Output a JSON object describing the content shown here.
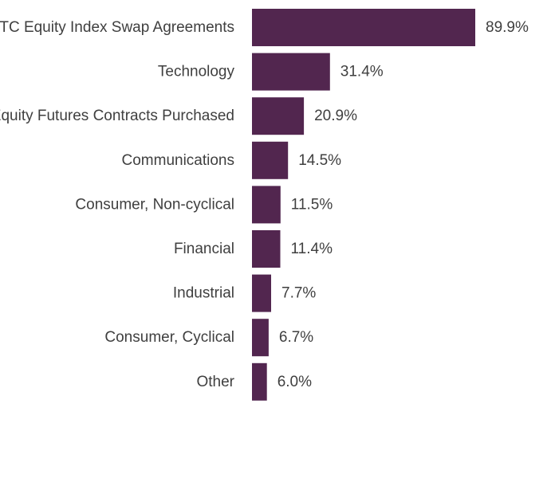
{
  "chart_data": {
    "type": "bar",
    "orientation": "horizontal",
    "categories": [
      "OTC Equity Index Swap Agreements",
      "Technology",
      "Equity Futures Contracts Purchased",
      "Communications",
      "Consumer, Non-cyclical",
      "Financial",
      "Industrial",
      "Consumer, Cyclical",
      "Other"
    ],
    "values": [
      89.9,
      31.4,
      20.9,
      14.5,
      11.5,
      11.4,
      7.7,
      6.7,
      6.0
    ],
    "value_labels": [
      "89.9%",
      "31.4%",
      "20.9%",
      "14.5%",
      "11.5%",
      "11.4%",
      "7.7%",
      "6.7%",
      "6.0%"
    ],
    "xlim": [
      0,
      100
    ],
    "grid": false,
    "legend": "none",
    "bar_color": "#52264f",
    "text_color": "#3f3f3f"
  }
}
